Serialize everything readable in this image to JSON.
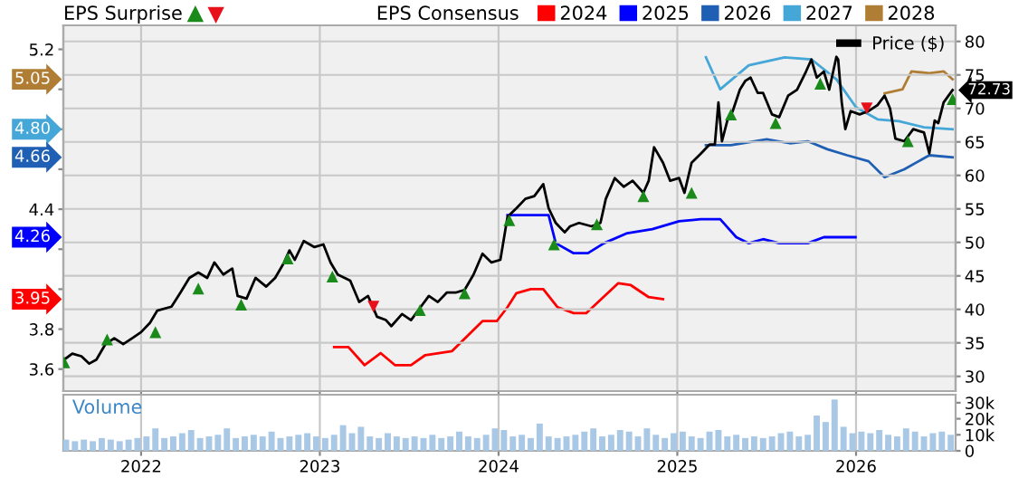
{
  "chart_data": [
    {
      "type": "line",
      "title": "EPS Surprise",
      "legend_title": "EPS Consensus",
      "xlim": [
        2021.565,
        2026.557
      ],
      "xticks": [
        2022,
        2023,
        2024,
        2025,
        2026
      ],
      "ylim": [
        3.49,
        5.32
      ],
      "yticks": [
        3.6,
        3.8,
        {
          "value": 4.0,
          "label": null
        },
        {
          "value": 4.2,
          "label": null
        },
        4.4,
        {
          "value": 4.6,
          "label": null
        },
        {
          "value": 4.8,
          "label": null
        },
        {
          "value": 5.0,
          "label": null
        },
        5.2
      ],
      "y2lim": [
        27.8,
        82.4
      ],
      "y2ticks": [
        30,
        35,
        40,
        45,
        50,
        55,
        60,
        65,
        70,
        75,
        80
      ],
      "grid": true,
      "legend": "top",
      "tick_labels": "y",
      "annotations": [
        "5.05",
        "4.80",
        "4.66",
        "4.26",
        "3.95"
      ],
      "series": [
        {
          "name": "Price ($)",
          "color": "#000000",
          "axis": "y2",
          "x": [
            2021.57,
            2021.615,
            2021.666,
            2021.71,
            2021.75,
            2021.8,
            2021.85,
            2021.9,
            2021.95,
            2022.0,
            2022.05,
            2022.09,
            2022.17,
            2022.22,
            2022.27,
            2022.32,
            2022.37,
            2022.41,
            2022.46,
            2022.51,
            2022.54,
            2022.59,
            2022.64,
            2022.7,
            2022.75,
            2022.8,
            2022.83,
            2022.86,
            2022.91,
            2022.97,
            2023.02,
            2023.06,
            2023.1,
            2023.17,
            2023.22,
            2023.27,
            2023.32,
            2023.37,
            2023.4,
            2023.46,
            2023.51,
            2023.56,
            2023.61,
            2023.66,
            2023.71,
            2023.76,
            2023.81,
            2023.86,
            2023.91,
            2023.96,
            2024.01,
            2024.05,
            2024.1,
            2024.15,
            2024.2,
            2024.25,
            2024.28,
            2024.32,
            2024.37,
            2024.4,
            2024.45,
            2024.52,
            2024.57,
            2024.6,
            2024.65,
            2024.7,
            2024.75,
            2024.81,
            2024.84,
            2024.87,
            2024.92,
            2024.96,
            2025.01,
            2025.04,
            2025.08,
            2025.13,
            2025.18,
            2025.21,
            2025.23,
            2025.25,
            2025.28,
            2025.31,
            2025.35,
            2025.38,
            2025.41,
            2025.45,
            2025.48,
            2025.53,
            2025.57,
            2025.62,
            2025.67,
            2025.72,
            2025.75,
            2025.78,
            2025.82,
            2025.85,
            2025.89,
            2025.9,
            2025.92,
            2025.94,
            2025.97,
            2026.02,
            2026.07,
            2026.12,
            2026.16,
            2026.19,
            2026.22,
            2026.27,
            2026.32,
            2026.38,
            2026.41,
            2026.44,
            2026.46,
            2026.49,
            2026.54
          ],
          "values": [
            32.5,
            33.4,
            33.0,
            31.9,
            32.5,
            34.8,
            35.7,
            34.8,
            35.7,
            36.6,
            38.0,
            39.8,
            40.4,
            42.5,
            44.7,
            45.5,
            44.7,
            47.0,
            45.2,
            46.1,
            42.0,
            41.6,
            44.7,
            43.4,
            44.7,
            47.0,
            48.8,
            47.4,
            50.2,
            49.3,
            49.7,
            47.0,
            45.2,
            44.3,
            41.1,
            42.0,
            38.9,
            38.4,
            37.5,
            39.3,
            38.4,
            40.2,
            42.0,
            41.1,
            42.5,
            42.5,
            42.9,
            45.2,
            48.3,
            47.0,
            47.4,
            53.8,
            55.1,
            56.5,
            56.9,
            58.7,
            55.1,
            52.9,
            51.5,
            52.4,
            52.9,
            52.4,
            52.9,
            56.5,
            59.6,
            58.3,
            59.2,
            57.4,
            59.2,
            64.2,
            61.9,
            59.2,
            59.6,
            57.4,
            61.9,
            63.2,
            64.6,
            64.6,
            70.9,
            65.1,
            68.2,
            69.6,
            72.8,
            74.1,
            74.6,
            72.3,
            72.3,
            69.1,
            68.7,
            71.9,
            72.8,
            75.5,
            77.3,
            74.6,
            75.5,
            72.8,
            77.7,
            77.3,
            70.9,
            66.9,
            69.6,
            69.1,
            69.6,
            70.5,
            71.9,
            70.0,
            65.5,
            65.1,
            66.9,
            66.4,
            63.3,
            68.2,
            67.8,
            70.9,
            72.73
          ],
          "value_labels": [
            null,
            null,
            null,
            null,
            null,
            null,
            null,
            null,
            null,
            null,
            null,
            null,
            null,
            null,
            null,
            null,
            null,
            null,
            null,
            null,
            null,
            null,
            null,
            null,
            null,
            null,
            null,
            null,
            null,
            null,
            null,
            null,
            null,
            null,
            null,
            null,
            null,
            null,
            null,
            null,
            null,
            null,
            null,
            null,
            null,
            null,
            null,
            null,
            null,
            null,
            null,
            null,
            null,
            null,
            null,
            null,
            null,
            null,
            null,
            null,
            null,
            null,
            null,
            null,
            null,
            null,
            null,
            null,
            null,
            null,
            null,
            null,
            null,
            null,
            null,
            null,
            null,
            null,
            null,
            null,
            null,
            null,
            null,
            null,
            null,
            null,
            null,
            null,
            null,
            null,
            null,
            null,
            null,
            null,
            null,
            null,
            null,
            null,
            null,
            null,
            null,
            null,
            null,
            null,
            null,
            null,
            null,
            null,
            null,
            null,
            null,
            null,
            null,
            null,
            "72.73"
          ]
        },
        {
          "name": "2024",
          "color": "#ff0000",
          "axis": "y",
          "x": [
            2023.08,
            2023.16,
            2023.25,
            2023.34,
            2023.42,
            2023.51,
            2023.59,
            2023.74,
            2023.83,
            2023.91,
            2023.99,
            2024.05,
            2024.1,
            2024.18,
            2024.25,
            2024.33,
            2024.42,
            2024.49,
            2024.67,
            2024.74,
            2024.84,
            2024.92
          ],
          "values": [
            3.71,
            3.71,
            3.62,
            3.68,
            3.62,
            3.62,
            3.67,
            3.69,
            3.77,
            3.84,
            3.84,
            3.91,
            3.98,
            4.0,
            4.0,
            3.91,
            3.88,
            3.88,
            4.03,
            4.02,
            3.96,
            3.95
          ]
        },
        {
          "name": "2025",
          "color": "#0000ff",
          "axis": "y",
          "x": [
            2024.05,
            2024.15,
            2024.28,
            2024.32,
            2024.42,
            2024.5,
            2024.59,
            2024.72,
            2024.86,
            2025.01,
            2025.13,
            2025.24,
            2025.33,
            2025.4,
            2025.48,
            2025.57,
            2025.73,
            2025.82,
            2025.9,
            2025.997
          ],
          "values": [
            4.37,
            4.37,
            4.37,
            4.23,
            4.18,
            4.18,
            4.23,
            4.28,
            4.3,
            4.34,
            4.35,
            4.35,
            4.26,
            4.23,
            4.25,
            4.23,
            4.23,
            4.26,
            4.26,
            4.26
          ]
        },
        {
          "name": "2026",
          "color": "#1f5fb4",
          "axis": "y",
          "x": [
            2025.16,
            2025.3,
            2025.5,
            2025.63,
            2025.73,
            2025.84,
            2025.95,
            2026.07,
            2026.16,
            2026.27,
            2026.41,
            2026.54
          ],
          "values": [
            4.72,
            4.72,
            4.75,
            4.73,
            4.74,
            4.7,
            4.67,
            4.64,
            4.56,
            4.6,
            4.67,
            4.66
          ]
        },
        {
          "name": "2027",
          "color": "#44a7d8",
          "axis": "y",
          "x": [
            2025.16,
            2025.24,
            2025.4,
            2025.6,
            2025.75,
            2025.89,
            2026.0,
            2026.12,
            2026.24,
            2026.38,
            2026.54
          ],
          "values": [
            5.16,
            5.0,
            5.12,
            5.16,
            5.15,
            5.05,
            4.91,
            4.85,
            4.84,
            4.81,
            4.8
          ]
        },
        {
          "name": "2028",
          "color": "#b07d35",
          "axis": "y",
          "x": [
            2026.16,
            2026.26,
            2026.31,
            2026.41,
            2026.49,
            2026.54
          ],
          "values": [
            4.98,
            5.0,
            5.09,
            5.08,
            5.09,
            5.05
          ]
        },
        {
          "type": "scatter",
          "color": "#1a8a1a",
          "axis": "y2",
          "marker": "triangle",
          "x": [
            2021.57,
            2021.81,
            2022.08,
            2022.32,
            2022.56,
            2022.82,
            2023.07,
            2023.56,
            2023.81,
            2024.06,
            2024.31,
            2024.55,
            2024.81,
            2025.08,
            2025.3,
            2025.55,
            2025.8,
            2026.29,
            2026.54
          ],
          "values": [
            32.1,
            35.5,
            36.6,
            43.1,
            40.7,
            47.6,
            44.9,
            39.9,
            42.4,
            53.3,
            49.7,
            52.7,
            56.9,
            57.4,
            69.1,
            67.8,
            73.7,
            65.1,
            71.4
          ]
        },
        {
          "type": "scatter",
          "color": "#e8101a",
          "axis": "y2",
          "marker": "triangle_down",
          "x": [
            2023.3,
            2026.06
          ],
          "values": [
            40.4,
            70.0
          ]
        }
      ]
    },
    {
      "type": "bar",
      "title": "Volume",
      "color": "#a9c8e6",
      "xlim": [
        2021.565,
        2026.557
      ],
      "xticks": [
        2022,
        2023,
        2024,
        2025,
        2026
      ],
      "ylim": [
        0,
        35000
      ],
      "yticks": [
        0,
        {
          "value": 10000,
          "label": "10k"
        },
        {
          "value": 20000,
          "label": "20k"
        },
        {
          "value": 30000,
          "label": "30k"
        }
      ],
      "grid": "x",
      "x": [
        2021.58,
        2021.63,
        2021.68,
        2021.73,
        2021.78,
        2021.83,
        2021.88,
        2021.93,
        2021.98,
        2022.03,
        2022.08,
        2022.13,
        2022.18,
        2022.23,
        2022.28,
        2022.33,
        2022.38,
        2022.43,
        2022.48,
        2022.53,
        2022.58,
        2022.63,
        2022.68,
        2022.73,
        2022.78,
        2022.83,
        2022.88,
        2022.93,
        2022.98,
        2023.03,
        2023.08,
        2023.13,
        2023.18,
        2023.23,
        2023.28,
        2023.33,
        2023.38,
        2023.43,
        2023.48,
        2023.53,
        2023.58,
        2023.63,
        2023.68,
        2023.73,
        2023.78,
        2023.83,
        2023.88,
        2023.93,
        2023.98,
        2024.03,
        2024.08,
        2024.13,
        2024.18,
        2024.23,
        2024.28,
        2024.33,
        2024.38,
        2024.43,
        2024.48,
        2024.53,
        2024.58,
        2024.63,
        2024.68,
        2024.73,
        2024.78,
        2024.83,
        2024.88,
        2024.93,
        2024.98,
        2025.03,
        2025.08,
        2025.13,
        2025.18,
        2025.23,
        2025.28,
        2025.33,
        2025.38,
        2025.43,
        2025.48,
        2025.53,
        2025.58,
        2025.63,
        2025.68,
        2025.73,
        2025.78,
        2025.83,
        2025.88,
        2025.93,
        2025.98,
        2026.03,
        2026.08,
        2026.13,
        2026.18,
        2026.23,
        2026.28,
        2026.33,
        2026.38,
        2026.43,
        2026.48,
        2026.53
      ],
      "values": [
        7000,
        6000,
        7000,
        6000,
        8000,
        7000,
        6000,
        7000,
        8000,
        9000,
        14000,
        8000,
        9000,
        11000,
        13000,
        8000,
        9000,
        10000,
        14000,
        8000,
        9000,
        10000,
        9000,
        12000,
        8000,
        9000,
        10000,
        11000,
        9000,
        8000,
        10000,
        16000,
        11000,
        15000,
        9000,
        8000,
        11000,
        9000,
        8000,
        9000,
        8000,
        10000,
        8000,
        9000,
        12000,
        9000,
        8000,
        10000,
        14000,
        13000,
        9000,
        10000,
        8000,
        17000,
        9000,
        8000,
        9000,
        10000,
        12000,
        14000,
        9000,
        10000,
        13000,
        12000,
        9000,
        14000,
        10000,
        8000,
        11000,
        12000,
        9000,
        8000,
        12000,
        13000,
        9000,
        10000,
        8000,
        9000,
        8000,
        9000,
        11000,
        12000,
        9000,
        10000,
        22000,
        18000,
        32000,
        15000,
        11000,
        12000,
        11000,
        13000,
        10000,
        9000,
        14000,
        12000,
        9000,
        11000,
        12000,
        10000
      ]
    }
  ]
}
